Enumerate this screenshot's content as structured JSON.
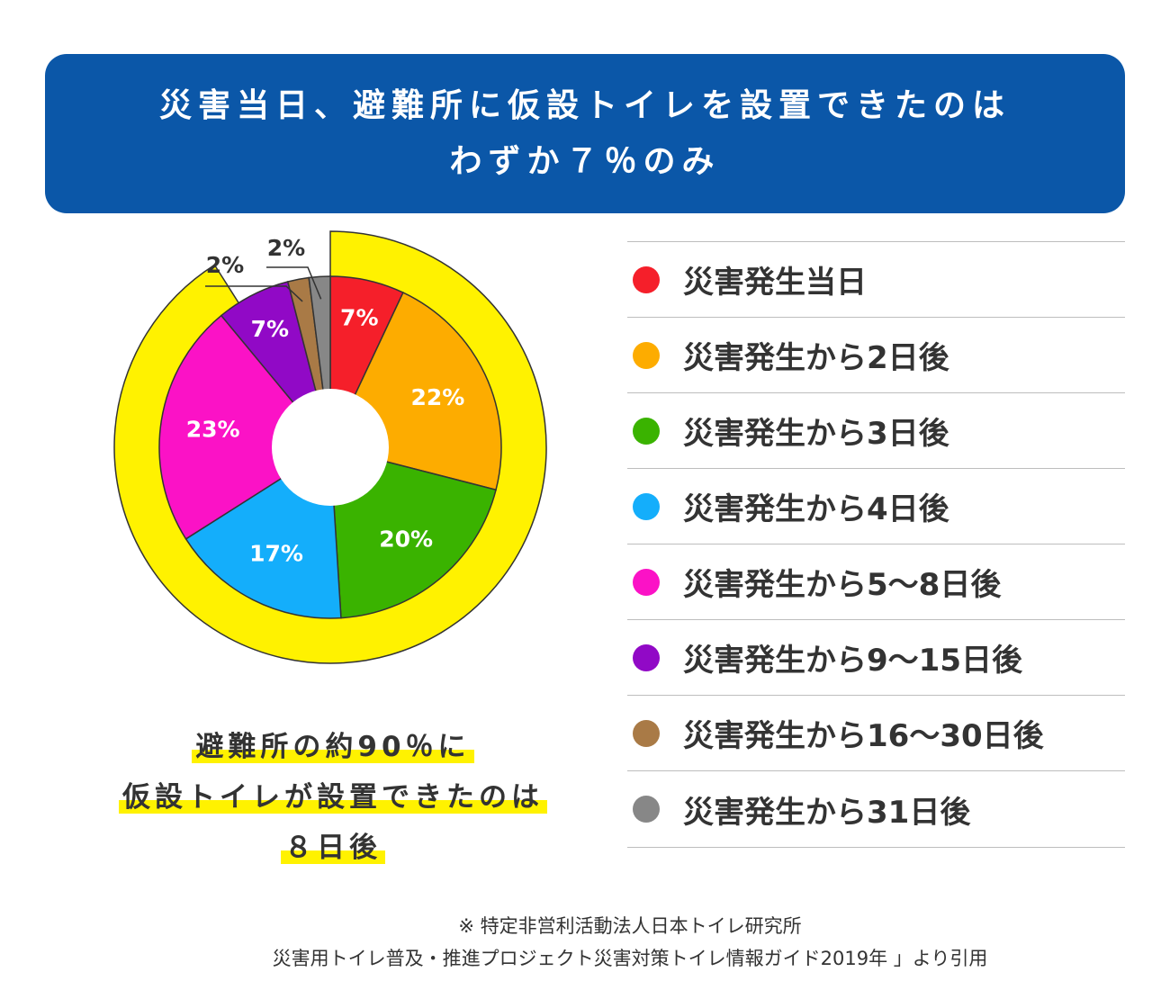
{
  "title": {
    "line1": "災害当日、避難所に仮設トイレを設置できたのは",
    "line2": "わずか７％のみ"
  },
  "chart_data": {
    "type": "pie",
    "categories": [
      "災害発生当日",
      "災害発生から2日後",
      "災害発生から3日後",
      "災害発生から4日後",
      "災害発生から5〜8日後",
      "災害発生から9〜15日後",
      "災害発生から16〜30日後",
      "災害発生から31日後"
    ],
    "values": [
      7,
      22,
      20,
      17,
      23,
      7,
      2,
      2
    ],
    "value_labels": [
      "7%",
      "22%",
      "20%",
      "17%",
      "23%",
      "7%",
      "2%",
      "2%"
    ],
    "colors": [
      "#f51f2a",
      "#fdac00",
      "#3ab300",
      "#14aefb",
      "#fb12c6",
      "#9109c6",
      "#a97a46",
      "#878787"
    ],
    "highlight_share_percent": 91,
    "highlight_color": "#fff200"
  },
  "note": {
    "line1": "避難所の約90％に",
    "line2": "仮設トイレが設置できたのは",
    "line3": "８日後"
  },
  "source": {
    "line1": "※ 特定非営利活動法人日本トイレ研究所",
    "line2": "災害用トイレ普及・推進プロジェクト災害対策トイレ情報ガイド2019年 」より引用"
  }
}
